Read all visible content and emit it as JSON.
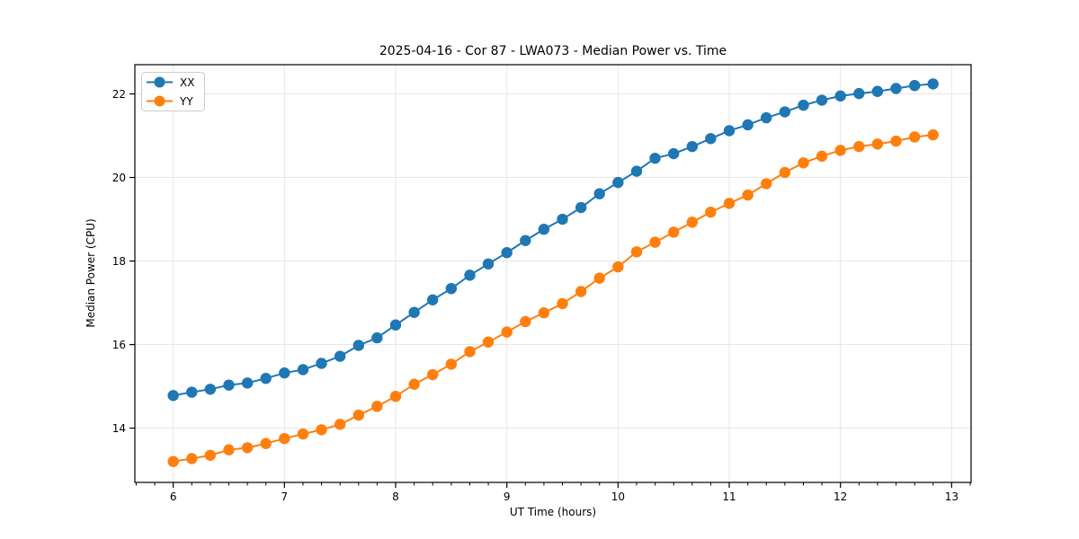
{
  "window": {
    "background": "#ffffff"
  },
  "chart_data": {
    "type": "line",
    "title": "2025-04-16 - Cor 87 - LWA073 - Median Power vs. Time",
    "xlabel": "UT Time (hours)",
    "ylabel": "Median Power (CPU)",
    "xlim": [
      5.655,
      13.175
    ],
    "ylim": [
      12.7,
      22.7
    ],
    "x_major_ticks": [
      6,
      7,
      8,
      9,
      10,
      11,
      12,
      13
    ],
    "x_minor_tick_step": 0.16667,
    "y_major_ticks": [
      14,
      16,
      18,
      20,
      22
    ],
    "grid": true,
    "grid_color": "#e6e6e6",
    "spine_color": "#000000",
    "legend_position": "upper-left",
    "marker": "circle",
    "x": [
      6.0,
      6.167,
      6.333,
      6.5,
      6.667,
      6.833,
      7.0,
      7.167,
      7.333,
      7.5,
      7.667,
      7.833,
      8.0,
      8.167,
      8.333,
      8.5,
      8.667,
      8.833,
      9.0,
      9.167,
      9.333,
      9.5,
      9.667,
      9.833,
      10.0,
      10.167,
      10.333,
      10.5,
      10.667,
      10.833,
      11.0,
      11.167,
      11.333,
      11.5,
      11.667,
      11.833,
      12.0,
      12.167,
      12.333,
      12.5,
      12.667,
      12.833
    ],
    "series": [
      {
        "name": "XX",
        "color": "#1f77b4",
        "values": [
          14.78,
          14.86,
          14.93,
          15.03,
          15.08,
          15.19,
          15.32,
          15.4,
          15.55,
          15.72,
          15.98,
          16.16,
          16.47,
          16.77,
          17.07,
          17.34,
          17.66,
          17.93,
          18.2,
          18.49,
          18.76,
          19.0,
          19.28,
          19.61,
          19.88,
          20.15,
          20.46,
          20.57,
          20.74,
          20.93,
          21.12,
          21.26,
          21.43,
          21.57,
          21.73,
          21.85,
          21.95,
          22.01,
          22.06,
          22.13,
          22.2,
          22.24
        ]
      },
      {
        "name": "YY",
        "color": "#ff7f0e",
        "values": [
          13.2,
          13.27,
          13.35,
          13.48,
          13.53,
          13.63,
          13.75,
          13.86,
          13.96,
          14.09,
          14.31,
          14.52,
          14.76,
          15.05,
          15.28,
          15.53,
          15.83,
          16.06,
          16.3,
          16.55,
          16.76,
          16.98,
          17.27,
          17.59,
          17.86,
          18.22,
          18.45,
          18.69,
          18.93,
          19.17,
          19.38,
          19.58,
          19.85,
          20.12,
          20.35,
          20.51,
          20.65,
          20.74,
          20.8,
          20.87,
          20.97,
          21.02
        ]
      }
    ]
  }
}
